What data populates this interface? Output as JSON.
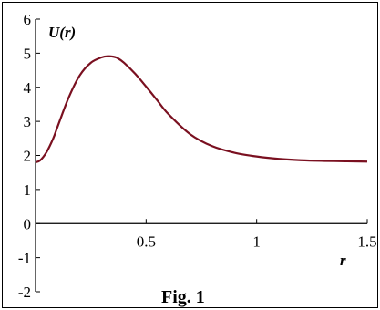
{
  "chart_data": {
    "type": "line",
    "title": "",
    "caption": "Fig. 1",
    "xlabel": "r",
    "ylabel": "U(r)",
    "xlim": [
      0,
      1.5
    ],
    "ylim": [
      -2,
      6
    ],
    "x_ticks": [
      "0.5",
      "1",
      "1.5"
    ],
    "y_ticks": [
      "-2",
      "-1",
      "0",
      "1",
      "2",
      "3",
      "4",
      "5",
      "6"
    ],
    "grid": false,
    "line_color": "#7a1020",
    "series": [
      {
        "x": [
          0,
          0.02,
          0.05,
          0.08,
          0.1,
          0.15,
          0.2,
          0.25,
          0.3,
          0.33,
          0.35,
          0.37,
          0.4,
          0.45,
          0.5,
          0.55,
          0.6,
          0.7,
          0.8,
          0.9,
          1.0,
          1.1,
          1.2,
          1.3,
          1.4,
          1.5
        ],
        "y": [
          1.8,
          1.85,
          2.1,
          2.5,
          2.85,
          3.7,
          4.35,
          4.72,
          4.88,
          4.91,
          4.9,
          4.86,
          4.72,
          4.4,
          4.02,
          3.62,
          3.22,
          2.62,
          2.27,
          2.08,
          1.97,
          1.9,
          1.86,
          1.84,
          1.83,
          1.82
        ]
      }
    ]
  }
}
